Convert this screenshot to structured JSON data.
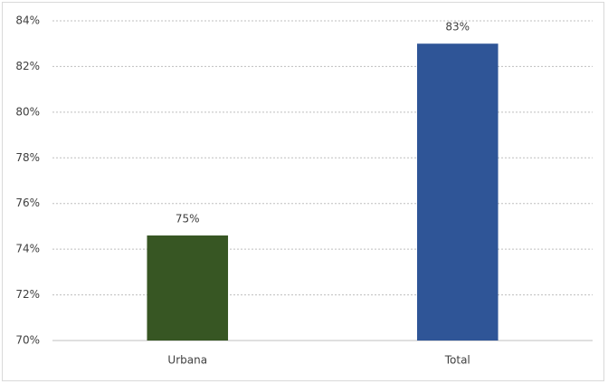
{
  "chart_data": {
    "type": "bar",
    "categories": [
      "Urbana",
      "Total"
    ],
    "values": [
      74.6,
      83
    ],
    "value_labels": [
      "75%",
      "83%"
    ],
    "colors": [
      "#375623",
      "#2f5597"
    ],
    "ylim": [
      70,
      84
    ],
    "yticks": [
      {
        "value": 70,
        "label": "70%"
      },
      {
        "value": 72,
        "label": "72%"
      },
      {
        "value": 74,
        "label": "74%"
      },
      {
        "value": 76,
        "label": "76%"
      },
      {
        "value": 78,
        "label": "78%"
      },
      {
        "value": 80,
        "label": "80%"
      },
      {
        "value": 82,
        "label": "82%"
      },
      {
        "value": 84,
        "label": "84%"
      }
    ],
    "grid": true
  }
}
